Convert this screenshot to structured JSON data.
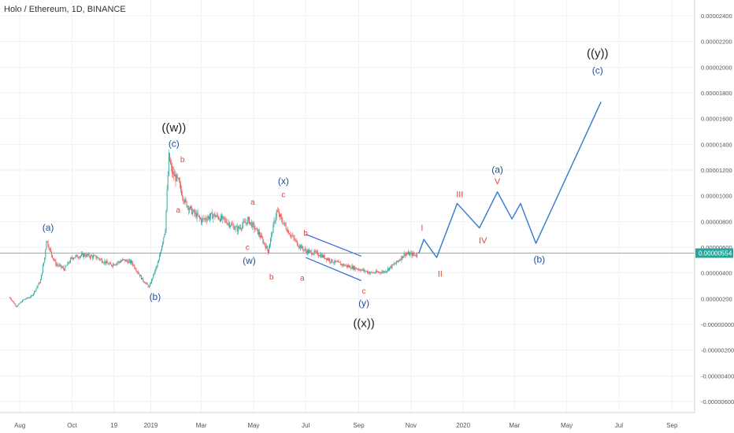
{
  "header": {
    "title": "Holo / Ethereum, 1D, BINANCE"
  },
  "chart_data": {
    "type": "candlestick",
    "ylim": [
      -6.5e-06,
      2.6e-06
    ],
    "y_ticks": [
      {
        "value": 2.4e-05,
        "label": "0.00002400"
      },
      {
        "value": 2.2e-05,
        "label": "0.00002200"
      },
      {
        "value": 2e-05,
        "label": "0.00002000"
      },
      {
        "value": 1.8e-05,
        "label": "0.00001800"
      },
      {
        "value": 1.6e-05,
        "label": "0.00001600"
      },
      {
        "value": 1.4e-05,
        "label": "0.00001400"
      },
      {
        "value": 1.2e-05,
        "label": "0.00001200"
      },
      {
        "value": 1e-05,
        "label": "0.00001000"
      },
      {
        "value": 8e-06,
        "label": "0.00000800"
      },
      {
        "value": 6e-06,
        "label": "0.00000600"
      },
      {
        "value": 4e-06,
        "label": "0.00000400"
      },
      {
        "value": 2e-06,
        "label": "0.00000200"
      },
      {
        "value": 0,
        "label": "0.00000000"
      },
      {
        "value": -2e-06,
        "label": "-0.00000200"
      },
      {
        "value": -4e-06,
        "label": "-0.00000400"
      },
      {
        "value": -6e-06,
        "label": "-0.00000600"
      }
    ],
    "y_tick_labels_shown": [
      "0.00002400",
      "0.00002200",
      "0.00002000",
      "0.00001800",
      "0.00001600",
      "0.00001400",
      "0.00001200",
      "0.00001000",
      "0.00000800",
      "0.00000600",
      "0.00000400",
      "0.00000200",
      "-0.00000000",
      "-0.00000200",
      "-0.00000400",
      "-0.00000600"
    ],
    "x_ticks": [
      {
        "date": "2018-08-01",
        "label": "Aug"
      },
      {
        "date": "2018-10-01",
        "label": "Oct"
      },
      {
        "date": "2018-11-19",
        "label": "19"
      },
      {
        "date": "2019-01-01",
        "label": "2019"
      },
      {
        "date": "2019-03-01",
        "label": "Mar"
      },
      {
        "date": "2019-05-01",
        "label": "May"
      },
      {
        "date": "2019-07-01",
        "label": "Jul"
      },
      {
        "date": "2019-09-01",
        "label": "Sep"
      },
      {
        "date": "2019-11-01",
        "label": "Nov"
      },
      {
        "date": "2020-01-01",
        "label": "2020"
      },
      {
        "date": "2020-03-01",
        "label": "Mar"
      },
      {
        "date": "2020-05-01",
        "label": "May"
      },
      {
        "date": "2020-07-01",
        "label": "Jul"
      },
      {
        "date": "2020-09-01",
        "label": "Sep"
      }
    ],
    "current_price": {
      "value": 5.54e-06,
      "label": "0.00000554"
    },
    "price_path": [
      [
        "2018-07-20",
        2.1e-06
      ],
      [
        "2018-07-28",
        1.4e-06
      ],
      [
        "2018-08-05",
        1.9e-06
      ],
      [
        "2018-08-15",
        2.2e-06
      ],
      [
        "2018-08-25",
        3.4e-06
      ],
      [
        "2018-08-30",
        5.2e-06
      ],
      [
        "2018-09-01",
        6.6e-06
      ],
      [
        "2018-09-06",
        5.6e-06
      ],
      [
        "2018-09-12",
        4.7e-06
      ],
      [
        "2018-09-22",
        4.3e-06
      ],
      [
        "2018-10-01",
        5.2e-06
      ],
      [
        "2018-10-15",
        5.4e-06
      ],
      [
        "2018-10-30",
        5.2e-06
      ],
      [
        "2018-11-15",
        4.6e-06
      ],
      [
        "2018-11-30",
        5e-06
      ],
      [
        "2018-12-10",
        4.8e-06
      ],
      [
        "2018-12-22",
        3.5e-06
      ],
      [
        "2018-12-30",
        2.9e-06
      ],
      [
        "2019-01-10",
        4.9e-06
      ],
      [
        "2019-01-18",
        7.5e-06
      ],
      [
        "2019-01-22",
        1.3e-05
      ],
      [
        "2019-01-26",
        1.18e-05
      ],
      [
        "2019-02-02",
        1.11e-05
      ],
      [
        "2019-02-10",
        9.5e-06
      ],
      [
        "2019-02-18",
        8.8e-06
      ],
      [
        "2019-03-01",
        8.1e-06
      ],
      [
        "2019-03-15",
        8.5e-06
      ],
      [
        "2019-03-28",
        8.1e-06
      ],
      [
        "2019-04-12",
        7.4e-06
      ],
      [
        "2019-04-25",
        8.1e-06
      ],
      [
        "2019-05-08",
        7e-06
      ],
      [
        "2019-05-18",
        5.7e-06
      ],
      [
        "2019-05-28",
        8.8e-06
      ],
      [
        "2019-06-10",
        7.3e-06
      ],
      [
        "2019-06-22",
        6.2e-06
      ],
      [
        "2019-07-01",
        5.7e-06
      ],
      [
        "2019-07-15",
        5.5e-06
      ],
      [
        "2019-08-01",
        4.9e-06
      ],
      [
        "2019-08-15",
        4.6e-06
      ],
      [
        "2019-09-01",
        4.3e-06
      ],
      [
        "2019-09-15",
        4e-06
      ],
      [
        "2019-10-01",
        4.1e-06
      ],
      [
        "2019-10-15",
        4.8e-06
      ],
      [
        "2019-10-25",
        5.5e-06
      ],
      [
        "2019-11-08",
        5.4e-06
      ]
    ],
    "projection_path": [
      [
        "2019-11-10",
        5.5e-06
      ],
      [
        "2019-11-16",
        6.6e-06
      ],
      [
        "2019-12-01",
        5.2e-06
      ],
      [
        "2019-12-25",
        9.4e-06
      ],
      [
        "2020-01-20",
        7.5e-06
      ],
      [
        "2020-02-10",
        1.03e-05
      ],
      [
        "2020-02-27",
        8.2e-06
      ],
      [
        "2020-03-08",
        9.4e-06
      ],
      [
        "2020-03-26",
        6.3e-06
      ],
      [
        "2020-06-10",
        1.73e-05
      ]
    ],
    "triangle_upper": [
      [
        "2019-07-01",
        7e-06
      ],
      [
        "2019-09-04",
        5.3e-06
      ]
    ],
    "triangle_lower": [
      [
        "2019-07-01",
        5.2e-06
      ],
      [
        "2019-09-04",
        3.4e-06
      ]
    ],
    "annotations": [
      {
        "text": "(a)",
        "date": "2018-09-03",
        "value": 7.3e-06,
        "style": "blue",
        "size": 12
      },
      {
        "text": "(b)",
        "date": "2019-01-06",
        "value": 1.9e-06,
        "style": "blue",
        "size": 12
      },
      {
        "text": "((w))",
        "date": "2019-01-28",
        "value": 1.5e-05,
        "style": "dark",
        "size": 15
      },
      {
        "text": "(c)",
        "date": "2019-01-28",
        "value": 1.38e-05,
        "style": "blue",
        "size": 12
      },
      {
        "text": "b",
        "date": "2019-02-07",
        "value": 1.26e-05,
        "style": "red",
        "size": 10
      },
      {
        "text": "a",
        "date": "2019-02-02",
        "value": 8.7e-06,
        "style": "red",
        "size": 10
      },
      {
        "text": "a",
        "date": "2019-04-30",
        "value": 9.3e-06,
        "style": "red",
        "size": 10
      },
      {
        "text": "c",
        "date": "2019-04-24",
        "value": 5.8e-06,
        "style": "red",
        "size": 10
      },
      {
        "text": "(w)",
        "date": "2019-04-26",
        "value": 4.7e-06,
        "style": "blue",
        "size": 12
      },
      {
        "text": "(x)",
        "date": "2019-06-05",
        "value": 1.09e-05,
        "style": "blue",
        "size": 12
      },
      {
        "text": "c",
        "date": "2019-06-05",
        "value": 9.9e-06,
        "style": "red",
        "size": 10
      },
      {
        "text": "b",
        "date": "2019-05-22",
        "value": 3.5e-06,
        "style": "red",
        "size": 10
      },
      {
        "text": "b",
        "date": "2019-07-01",
        "value": 6.9e-06,
        "style": "red",
        "size": 10
      },
      {
        "text": "a",
        "date": "2019-06-27",
        "value": 3.4e-06,
        "style": "red",
        "size": 10
      },
      {
        "text": "c",
        "date": "2019-09-07",
        "value": 2.4e-06,
        "style": "red",
        "size": 10
      },
      {
        "text": "(y)",
        "date": "2019-09-07",
        "value": 1.4e-06,
        "style": "blue",
        "size": 12
      },
      {
        "text": "((x))",
        "date": "2019-09-07",
        "value": -2e-07,
        "style": "dark",
        "size": 15
      },
      {
        "text": "I",
        "date": "2019-11-14",
        "value": 7.3e-06,
        "style": "red",
        "size": 11
      },
      {
        "text": "II",
        "date": "2019-12-05",
        "value": 3.7e-06,
        "style": "red",
        "size": 11
      },
      {
        "text": "III",
        "date": "2019-12-28",
        "value": 9.9e-06,
        "style": "red",
        "size": 11
      },
      {
        "text": "IV",
        "date": "2020-01-24",
        "value": 6.3e-06,
        "style": "red",
        "size": 11
      },
      {
        "text": "V",
        "date": "2020-02-10",
        "value": 1.09e-05,
        "style": "red",
        "size": 11
      },
      {
        "text": "(a)",
        "date": "2020-02-10",
        "value": 1.18e-05,
        "style": "blue",
        "size": 12
      },
      {
        "text": "(b)",
        "date": "2020-03-30",
        "value": 4.8e-06,
        "style": "blue",
        "size": 12
      },
      {
        "text": "((y))",
        "date": "2020-06-06",
        "value": 2.08e-05,
        "style": "dark",
        "size": 15
      },
      {
        "text": "(c)",
        "date": "2020-06-06",
        "value": 1.95e-05,
        "style": "blue",
        "size": 12
      }
    ]
  },
  "colors": {
    "up": "#26a69a",
    "down": "#ef5350",
    "projection": "#3f7fcf",
    "triangle": "#3f6fd8",
    "price_line": "#26a69a",
    "grid": "#eef2f6",
    "wave_blue": "#1b4f9c",
    "wave_dark": "#222222",
    "wave_red": "#e0463c"
  }
}
